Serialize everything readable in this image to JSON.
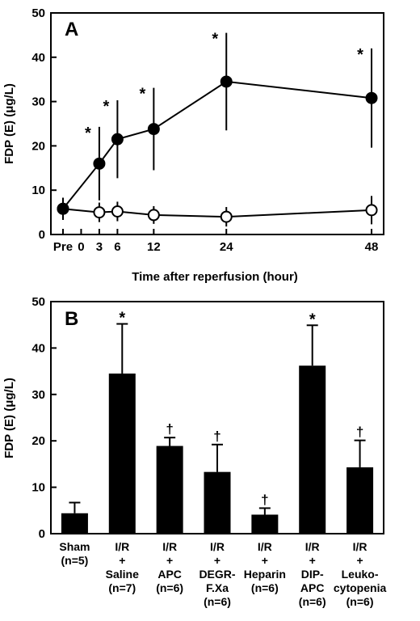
{
  "chart_data": [
    {
      "type": "line",
      "panel_label": "A",
      "xlabel": "Time after reperfusion (hour)",
      "ylabel": "FDP (E) (μg/L)",
      "ylim": [
        0,
        50
      ],
      "yticks": [
        0,
        10,
        20,
        30,
        40,
        50
      ],
      "xticks": [
        {
          "label": "Pre",
          "value": -3
        },
        {
          "label": "0",
          "value": 0
        },
        {
          "label": "3",
          "value": 3
        },
        {
          "label": "6",
          "value": 6
        },
        {
          "label": "12",
          "value": 12
        },
        {
          "label": "24",
          "value": 24
        },
        {
          "label": "48",
          "value": 48
        }
      ],
      "xlim": [
        -5,
        50
      ],
      "grid": false,
      "series": [
        {
          "marker": "filled-circle",
          "points": [
            {
              "x": -3,
              "y": 5.8,
              "err": 2.5,
              "mark": ""
            },
            {
              "x": 3,
              "y": 16.0,
              "err": 8.3,
              "mark": "*"
            },
            {
              "x": 6,
              "y": 21.5,
              "err": 8.8,
              "mark": "*"
            },
            {
              "x": 12,
              "y": 23.8,
              "err": 9.3,
              "mark": "*"
            },
            {
              "x": 24,
              "y": 34.5,
              "err": 11.0,
              "mark": "*"
            },
            {
              "x": 48,
              "y": 30.8,
              "err": 11.2,
              "mark": "*"
            }
          ]
        },
        {
          "marker": "open-circle",
          "points": [
            {
              "x": -3,
              "y": 5.8,
              "err": 2.5,
              "mark": ""
            },
            {
              "x": 3,
              "y": 5.0,
              "err": 2.2,
              "mark": ""
            },
            {
              "x": 6,
              "y": 5.2,
              "err": 2.2,
              "mark": ""
            },
            {
              "x": 12,
              "y": 4.4,
              "err": 2.0,
              "mark": ""
            },
            {
              "x": 24,
              "y": 4.0,
              "err": 2.2,
              "mark": ""
            },
            {
              "x": 48,
              "y": 5.5,
              "err": 3.2,
              "mark": ""
            }
          ]
        }
      ]
    },
    {
      "type": "bar",
      "panel_label": "B",
      "ylabel": "FDP (E) (μg/L)",
      "ylim": [
        0,
        50
      ],
      "yticks": [
        0,
        10,
        20,
        30,
        40,
        50
      ],
      "grid": false,
      "categories": [
        {
          "lines": [
            "Sham",
            "(n=5)"
          ],
          "plus": false
        },
        {
          "lines": [
            "I/R",
            "+",
            "Saline",
            "(n=7)"
          ],
          "plus": true
        },
        {
          "lines": [
            "I/R",
            "+",
            "APC",
            "(n=6)"
          ],
          "plus": true
        },
        {
          "lines": [
            "I/R",
            "+",
            "DEGR-",
            "F.Xa",
            "(n=6)"
          ],
          "plus": true
        },
        {
          "lines": [
            "I/R",
            "+",
            "Heparin",
            "(n=6)"
          ],
          "plus": true
        },
        {
          "lines": [
            "I/R",
            "+",
            "DIP-",
            "APC",
            "(n=6)"
          ],
          "plus": true
        },
        {
          "lines": [
            "I/R",
            "+",
            "Leuko-",
            "cytopenia",
            "(n=6)"
          ],
          "plus": true
        }
      ],
      "values": [
        4.4,
        34.5,
        18.9,
        13.3,
        4.1,
        36.2,
        14.3
      ],
      "errors": [
        2.3,
        10.7,
        1.8,
        5.9,
        1.4,
        8.7,
        5.8
      ],
      "marks": [
        "",
        "*",
        "†",
        "†",
        "†",
        "*",
        "†"
      ]
    }
  ]
}
